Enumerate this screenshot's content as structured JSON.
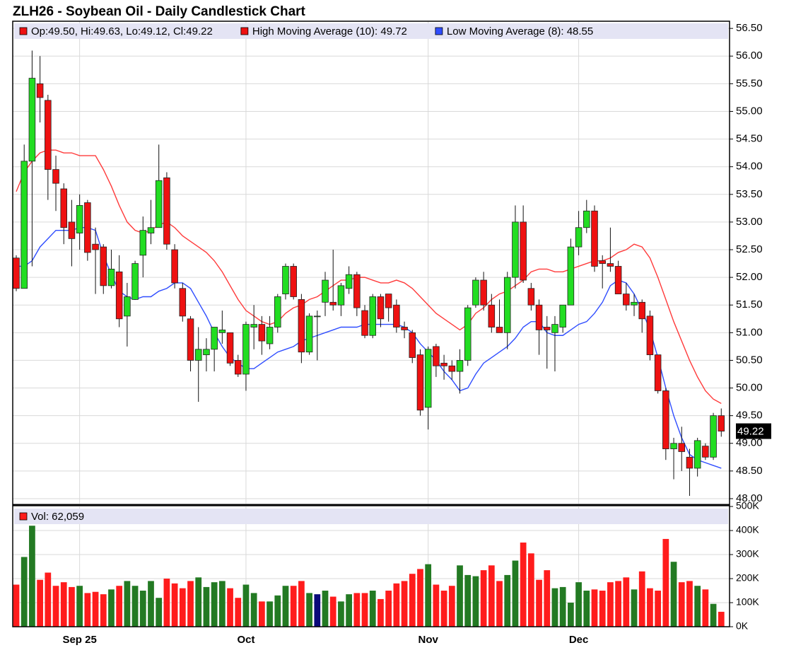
{
  "chart_data": {
    "type": "candlestick",
    "title": "ZLH26 - Soybean Oil - Daily Candlestick Chart",
    "ohlc_label": "Op:49.50, Hi:49.63, Lo:49.12, Cl:49.22",
    "categories": [
      null,
      null,
      null,
      null,
      null,
      null,
      null,
      null,
      "Sep 25",
      null,
      null,
      null,
      null,
      null,
      null,
      null,
      null,
      null,
      null,
      null,
      null,
      null,
      null,
      null,
      null,
      null,
      null,
      null,
      null,
      "Oct",
      null,
      null,
      null,
      null,
      null,
      null,
      null,
      null,
      null,
      null,
      null,
      null,
      null,
      null,
      null,
      null,
      null,
      null,
      null,
      null,
      null,
      null,
      "Nov",
      null,
      null,
      null,
      null,
      null,
      null,
      null,
      null,
      null,
      null,
      null,
      null,
      null,
      null,
      null,
      null,
      null,
      null,
      "Dec",
      null,
      null,
      null,
      null,
      null,
      null,
      null,
      null,
      null,
      null,
      null,
      null,
      null,
      null,
      null,
      null,
      null,
      null
    ],
    "open": [
      52.35,
      51.8,
      54.1,
      55.5,
      55.2,
      53.95,
      53.6,
      53.0,
      52.8,
      53.35,
      52.6,
      52.55,
      51.85,
      52.1,
      51.3,
      51.6,
      52.4,
      52.8,
      52.9,
      53.8,
      52.5,
      51.8,
      51.25,
      50.5,
      50.6,
      50.7,
      51.0,
      51.0,
      50.5,
      50.25,
      51.1,
      51.15,
      50.8,
      51.1,
      51.7,
      52.2,
      51.6,
      50.65,
      51.3,
      51.55,
      51.55,
      51.5,
      51.8,
      52.05,
      51.4,
      50.95,
      51.65,
      51.7,
      51.5,
      51.1,
      51.0,
      50.6,
      49.65,
      50.75,
      50.45,
      50.4,
      50.3,
      50.5,
      51.5,
      51.95,
      51.5,
      51.1,
      51.0,
      52.0,
      53.0,
      51.8,
      51.5,
      51.1,
      51.0,
      51.1,
      51.5,
      52.55,
      52.9,
      53.2,
      52.3,
      52.25,
      52.2,
      51.7,
      51.5,
      51.55,
      51.3,
      50.6,
      49.95,
      48.9,
      49.0,
      48.75,
      48.55,
      48.95,
      48.75,
      49.5
    ],
    "high": [
      52.4,
      54.4,
      56.1,
      56.0,
      55.3,
      54.2,
      53.7,
      53.4,
      53.5,
      53.4,
      52.9,
      52.6,
      52.5,
      52.4,
      51.9,
      52.3,
      53.1,
      53.4,
      54.4,
      53.9,
      52.6,
      51.9,
      51.3,
      51.1,
      50.9,
      51.1,
      51.4,
      51.0,
      50.6,
      51.2,
      51.5,
      51.3,
      51.3,
      51.7,
      52.25,
      52.25,
      51.7,
      51.35,
      51.4,
      52.1,
      52.5,
      51.9,
      52.2,
      52.1,
      51.5,
      51.7,
      51.7,
      51.7,
      51.6,
      51.2,
      51.05,
      50.7,
      50.75,
      50.8,
      50.6,
      50.5,
      50.7,
      51.5,
      52.0,
      52.1,
      51.7,
      51.6,
      52.1,
      53.3,
      53.3,
      51.9,
      51.6,
      51.3,
      51.3,
      51.5,
      52.7,
      53.2,
      53.4,
      53.3,
      52.4,
      52.9,
      52.3,
      51.9,
      51.7,
      51.6,
      51.4,
      50.6,
      50.0,
      49.1,
      49.3,
      48.9,
      49.1,
      49.0,
      49.55,
      49.63
    ],
    "low": [
      51.75,
      51.8,
      52.2,
      54.8,
      53.4,
      53.2,
      52.6,
      52.2,
      52.5,
      52.3,
      51.7,
      51.7,
      51.8,
      51.1,
      50.75,
      51.6,
      52.0,
      52.6,
      52.9,
      52.5,
      51.8,
      51.2,
      50.3,
      49.75,
      50.3,
      50.3,
      50.8,
      50.4,
      50.2,
      49.95,
      50.7,
      50.6,
      50.7,
      51.0,
      51.6,
      51.6,
      50.45,
      50.6,
      50.5,
      51.3,
      51.4,
      51.3,
      51.7,
      51.3,
      50.9,
      50.9,
      51.1,
      51.2,
      51.0,
      50.9,
      50.45,
      49.5,
      49.25,
      50.2,
      50.15,
      50.15,
      49.9,
      50.4,
      51.45,
      51.4,
      51.0,
      51.0,
      50.7,
      51.8,
      51.9,
      51.4,
      50.6,
      50.35,
      50.3,
      51.0,
      51.5,
      52.4,
      52.8,
      52.1,
      51.8,
      52.1,
      51.7,
      51.4,
      51.3,
      51.0,
      50.5,
      49.9,
      48.7,
      48.35,
      48.5,
      48.05,
      48.4,
      48.7,
      48.7,
      49.12
    ],
    "close": [
      51.8,
      54.1,
      55.6,
      55.25,
      53.95,
      53.7,
      52.9,
      52.7,
      53.3,
      52.45,
      52.5,
      51.85,
      52.15,
      51.25,
      51.65,
      52.25,
      52.85,
      52.9,
      53.75,
      52.6,
      51.9,
      51.3,
      50.5,
      50.7,
      50.7,
      51.1,
      51.05,
      50.45,
      50.25,
      51.15,
      51.15,
      50.85,
      51.1,
      51.65,
      52.2,
      51.65,
      50.65,
      51.3,
      51.3,
      51.95,
      51.5,
      51.85,
      52.05,
      51.45,
      50.95,
      51.65,
      51.25,
      51.45,
      51.1,
      51.05,
      50.55,
      49.6,
      50.7,
      50.4,
      50.4,
      50.3,
      50.5,
      51.45,
      51.95,
      51.5,
      51.1,
      51.0,
      52.0,
      53.0,
      51.95,
      51.5,
      51.05,
      51.05,
      51.15,
      51.5,
      52.55,
      52.9,
      53.2,
      52.2,
      52.25,
      52.2,
      51.7,
      51.5,
      51.55,
      51.25,
      50.6,
      49.95,
      48.9,
      49.0,
      48.85,
      48.55,
      49.05,
      48.75,
      49.5,
      49.22
    ],
    "up_color": "#22dd22",
    "down_color": "#ee1111",
    "series": [
      {
        "name": "High Moving Average (10): 49.72",
        "color": "#ff3b3b",
        "values": [
          53.55,
          53.9,
          54.1,
          54.25,
          54.3,
          54.3,
          54.25,
          54.25,
          54.2,
          54.2,
          54.2,
          53.95,
          53.65,
          53.3,
          53.0,
          52.85,
          52.8,
          52.85,
          52.95,
          53.0,
          52.9,
          52.75,
          52.65,
          52.55,
          52.45,
          52.3,
          52.1,
          51.85,
          51.6,
          51.4,
          51.3,
          51.2,
          51.15,
          51.2,
          51.35,
          51.45,
          51.5,
          51.6,
          51.65,
          51.75,
          51.85,
          51.95,
          51.95,
          52.0,
          52.0,
          51.95,
          51.9,
          51.9,
          51.95,
          51.9,
          51.8,
          51.65,
          51.5,
          51.35,
          51.25,
          51.15,
          51.05,
          51.15,
          51.35,
          51.45,
          51.6,
          51.7,
          51.75,
          51.85,
          51.95,
          52.1,
          52.15,
          52.15,
          52.1,
          52.1,
          52.15,
          52.2,
          52.25,
          52.3,
          52.3,
          52.35,
          52.45,
          52.5,
          52.6,
          52.55,
          52.35,
          52.0,
          51.6,
          51.2,
          50.85,
          50.5,
          50.2,
          49.95,
          49.8,
          49.72
        ]
      },
      {
        "name": "Low Moving Average (8): 48.55",
        "color": "#2f4dff",
        "values": [
          52.2,
          52.2,
          52.3,
          52.55,
          52.7,
          52.85,
          52.85,
          52.85,
          52.9,
          52.9,
          52.85,
          52.4,
          52.05,
          51.75,
          51.65,
          51.6,
          51.65,
          51.65,
          51.75,
          51.8,
          51.9,
          51.9,
          51.8,
          51.55,
          51.3,
          51.0,
          50.75,
          50.55,
          50.45,
          50.35,
          50.35,
          50.45,
          50.55,
          50.65,
          50.7,
          50.75,
          50.85,
          50.9,
          50.95,
          51.0,
          51.05,
          51.1,
          51.1,
          51.1,
          51.15,
          51.15,
          51.15,
          51.15,
          51.15,
          51.1,
          51.0,
          50.8,
          50.65,
          50.5,
          50.3,
          50.15,
          49.95,
          50.0,
          50.25,
          50.45,
          50.55,
          50.65,
          50.75,
          50.9,
          51.1,
          51.2,
          51.2,
          51.0,
          50.95,
          50.95,
          51.05,
          51.15,
          51.2,
          51.35,
          51.55,
          51.85,
          51.95,
          51.9,
          51.7,
          51.4,
          51.05,
          50.55,
          50.0,
          49.5,
          49.1,
          48.8,
          48.7,
          48.65,
          48.6,
          48.55
        ]
      }
    ],
    "last_price": 49.22,
    "ylim": [
      47.91,
      56.63
    ],
    "yticks": [
      {
        "value": 48.0,
        "label": "48.00"
      },
      {
        "value": 48.5,
        "label": "48.50"
      },
      {
        "value": 49.0,
        "label": "49.00"
      },
      {
        "value": 49.5,
        "label": "49.50"
      },
      {
        "value": 50.0,
        "label": "50.00"
      },
      {
        "value": 50.5,
        "label": "50.50"
      },
      {
        "value": 51.0,
        "label": "51.00"
      },
      {
        "value": 51.5,
        "label": "51.50"
      },
      {
        "value": 52.0,
        "label": "52.00"
      },
      {
        "value": 52.5,
        "label": "52.50"
      },
      {
        "value": 53.0,
        "label": "53.00"
      },
      {
        "value": 53.5,
        "label": "53.50"
      },
      {
        "value": 54.0,
        "label": "54.00"
      },
      {
        "value": 54.5,
        "label": "54.50"
      },
      {
        "value": 55.0,
        "label": "55.00"
      },
      {
        "value": 55.5,
        "label": "55.50"
      },
      {
        "value": 56.0,
        "label": "56.00"
      },
      {
        "value": 56.5,
        "label": "56.50"
      }
    ],
    "grid": true,
    "volume": {
      "label": "Vol: 62,059",
      "values": [
        175,
        290,
        420,
        195,
        225,
        170,
        185,
        165,
        170,
        140,
        145,
        135,
        155,
        170,
        190,
        170,
        150,
        190,
        120,
        200,
        180,
        160,
        190,
        205,
        165,
        185,
        190,
        160,
        120,
        175,
        140,
        105,
        105,
        130,
        170,
        170,
        190,
        140,
        135,
        150,
        125,
        105,
        135,
        140,
        140,
        150,
        115,
        150,
        180,
        190,
        220,
        240,
        260,
        175,
        150,
        170,
        255,
        215,
        210,
        235,
        255,
        190,
        215,
        275,
        350,
        305,
        195,
        235,
        160,
        165,
        100,
        185,
        150,
        155,
        150,
        185,
        190,
        205,
        155,
        230,
        160,
        150,
        365,
        270,
        185,
        190,
        170,
        155,
        95,
        62.059
      ],
      "up_color": "#237a23",
      "down_color": "#ff1c1c",
      "flat_color": "#0a0a7a",
      "ylim": [
        0,
        506
      ],
      "yticks": [
        {
          "value": 0,
          "label": "0K"
        },
        {
          "value": 100,
          "label": "100K"
        },
        {
          "value": 200,
          "label": "200K"
        },
        {
          "value": 300,
          "label": "300K"
        },
        {
          "value": 400,
          "label": "400K"
        },
        {
          "value": 500,
          "label": "500K"
        }
      ]
    }
  }
}
